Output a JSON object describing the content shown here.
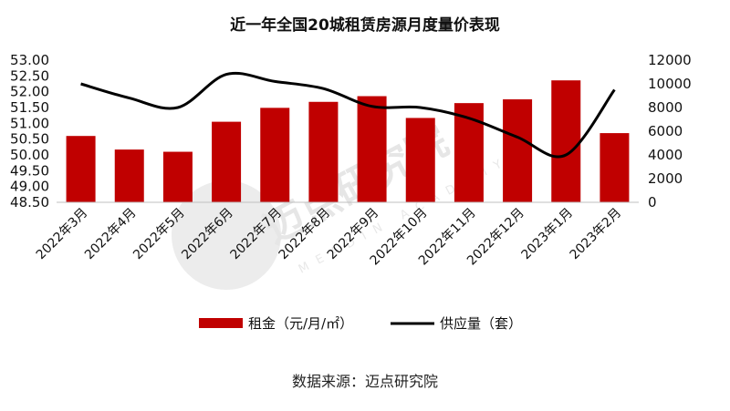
{
  "chart_data": {
    "type": "bar+line",
    "title": "近一年全国20城租赁房源月度量价表现",
    "categories": [
      "2022年3月",
      "2022年4月",
      "2022年5月",
      "2022年6月",
      "2022年7月",
      "2022年8月",
      "2022年9月",
      "2022年10月",
      "2022年11月",
      "2022年12月",
      "2023年1月",
      "2023年2月"
    ],
    "series": [
      {
        "name": "租金（元/月/㎡）",
        "type": "bar",
        "axis": "left",
        "color": "#c00000",
        "values": [
          50.6,
          50.17,
          50.1,
          51.05,
          51.49,
          51.68,
          51.86,
          51.17,
          51.64,
          51.76,
          52.36,
          50.69
        ]
      },
      {
        "name": "供应量（套）",
        "type": "line",
        "axis": "right",
        "color": "#000000",
        "values": [
          10000,
          8800,
          8000,
          10800,
          10200,
          9600,
          8100,
          8000,
          7100,
          5500,
          4000,
          9500
        ]
      }
    ],
    "y_left": {
      "ylim": [
        48.5,
        53.0
      ],
      "ticks": [
        "48.50",
        "49.00",
        "49.50",
        "50.00",
        "50.50",
        "51.00",
        "51.50",
        "52.00",
        "52.50",
        "53.00"
      ]
    },
    "y_right": {
      "ylim": [
        0,
        12000
      ],
      "ticks": [
        "0",
        "2000",
        "4000",
        "6000",
        "8000",
        "10000",
        "12000"
      ]
    },
    "legend": {
      "position": "bottom",
      "bar_label": "租金（元/月/㎡）",
      "line_label": "供应量（套）"
    },
    "grid": false
  },
  "source_text": "数据来源：迈点研究院",
  "watermark": {
    "text": "迈点研究院",
    "sub": "MEADIN ACADEMY"
  }
}
